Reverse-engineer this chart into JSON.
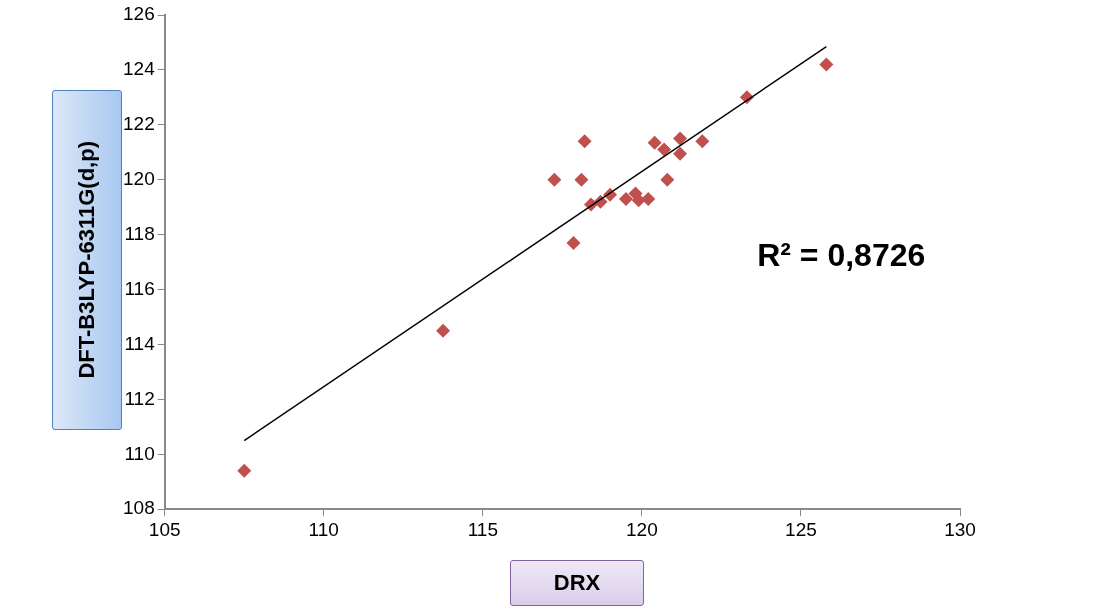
{
  "chart_data": {
    "type": "scatter",
    "xlabel": "DRX",
    "ylabel": "DFT-B3LYP-6311G(d,p)",
    "annotations": [
      "R² = 0,8726"
    ],
    "xlim": [
      105,
      130
    ],
    "xticks": [
      105,
      110,
      115,
      120,
      125,
      130
    ],
    "ylim": [
      108,
      126
    ],
    "yticks": [
      108,
      110,
      112,
      114,
      116,
      118,
      120,
      122,
      124,
      126
    ],
    "grid": false,
    "legend": false,
    "marker": "diamond",
    "series": [
      {
        "color": "#c0504d",
        "x": [
          107.5,
          113.75,
          117.85,
          117.25,
          118.1,
          118.2,
          118.4,
          118.7,
          119.0,
          119.5,
          119.8,
          119.9,
          120.2,
          120.8,
          120.4,
          120.7,
          121.2,
          121.2,
          121.9,
          123.3,
          125.8
        ],
        "values": [
          109.4,
          114.5,
          117.7,
          120.0,
          120.0,
          121.4,
          119.1,
          119.2,
          119.45,
          119.3,
          119.5,
          119.25,
          119.3,
          120.0,
          121.35,
          121.1,
          121.5,
          120.95,
          121.4,
          123.0,
          124.2
        ]
      },
      {
        "type": "line",
        "color": "#000000",
        "marker": "none",
        "x": [
          107.5,
          125.8
        ],
        "values": [
          110.5,
          124.85
        ]
      }
    ]
  }
}
